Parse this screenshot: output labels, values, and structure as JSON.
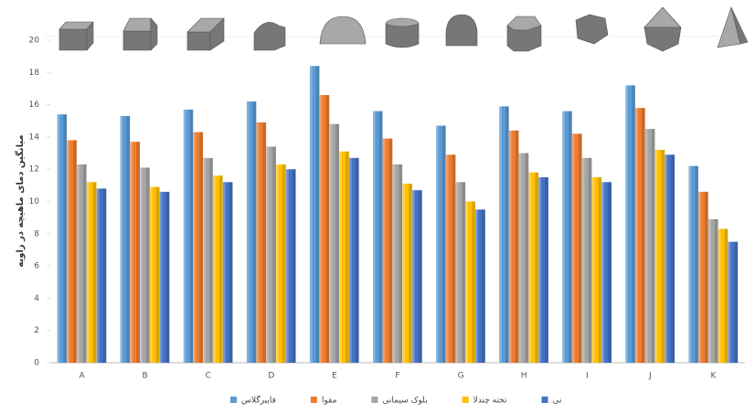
{
  "chart_data": {
    "type": "bar",
    "y_label": "میانگین دمای ماهیچه در زاویه",
    "categories": [
      "A",
      "B",
      "C",
      "D",
      "E",
      "F",
      "G",
      "H",
      "I",
      "J",
      "K"
    ],
    "series": [
      {
        "name": "فایبرگلاس",
        "color": "#5b9bd5",
        "values": [
          15.4,
          15.3,
          15.7,
          16.2,
          18.4,
          15.6,
          14.7,
          15.9,
          15.6,
          17.2,
          12.2
        ]
      },
      {
        "name": "مقوا",
        "color": "#ed7d31",
        "values": [
          13.8,
          13.7,
          14.3,
          14.9,
          16.6,
          13.9,
          12.9,
          14.4,
          14.2,
          15.8,
          10.6
        ]
      },
      {
        "name": "بلوک سیمانی",
        "color": "#a5a5a5",
        "values": [
          12.3,
          12.1,
          12.7,
          13.4,
          14.8,
          12.3,
          11.2,
          13.0,
          12.7,
          14.5,
          8.9
        ]
      },
      {
        "name": "تخته چندلا",
        "color": "#ffc000",
        "values": [
          11.2,
          10.9,
          11.6,
          12.3,
          13.1,
          11.1,
          10.0,
          11.8,
          11.5,
          13.2,
          8.3
        ]
      },
      {
        "name": "نی",
        "color": "#4472c4",
        "values": [
          10.8,
          10.6,
          11.2,
          12.0,
          12.7,
          10.7,
          9.5,
          11.5,
          11.2,
          12.9,
          7.5
        ]
      }
    ],
    "ylim": [
      0,
      20
    ],
    "yticks": [
      0,
      2,
      4,
      6,
      8,
      10,
      12,
      14,
      16,
      18,
      20
    ],
    "grid": false
  }
}
